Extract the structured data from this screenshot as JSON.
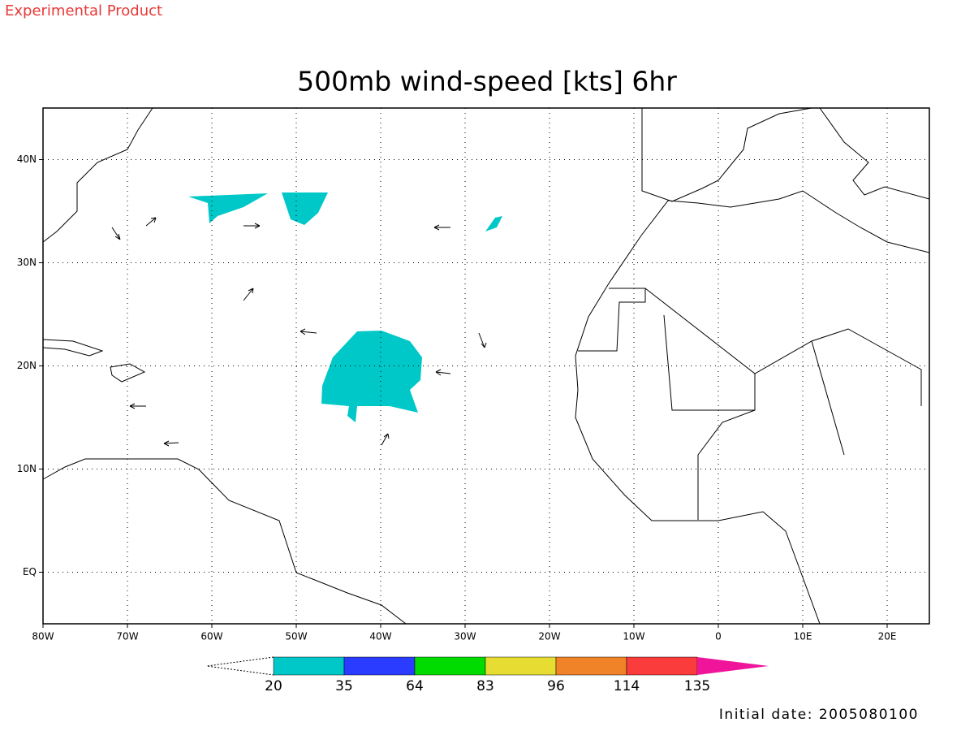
{
  "header": {
    "watermark": "Experimental Product",
    "title": "500mb wind-speed [kts] 6hr"
  },
  "map": {
    "xlim": [
      -80,
      25
    ],
    "ylim": [
      -5,
      45
    ],
    "xticks": [
      {
        "value": -80,
        "label": "80W"
      },
      {
        "value": -70,
        "label": "70W"
      },
      {
        "value": -60,
        "label": "60W"
      },
      {
        "value": -50,
        "label": "50W"
      },
      {
        "value": -40,
        "label": "40W"
      },
      {
        "value": -30,
        "label": "30W"
      },
      {
        "value": -20,
        "label": "20W"
      },
      {
        "value": -10,
        "label": "10W"
      },
      0,
      {
        "value": 10,
        "label": "10E"
      },
      {
        "value": 20,
        "label": "20E"
      }
    ],
    "yticks": [
      {
        "value": 40,
        "label": "40N"
      },
      {
        "value": 30,
        "label": "30N"
      },
      {
        "value": 20,
        "label": "20N"
      },
      {
        "value": 10,
        "label": "10N"
      },
      {
        "value": 0,
        "label": "EQ"
      }
    ],
    "grid": true
  },
  "colorbar": {
    "levels": [
      20,
      35,
      64,
      83,
      96,
      114,
      135
    ],
    "colors": [
      "#00c8c8",
      "#2a3cff",
      "#00dc00",
      "#e6dc32",
      "#f08228",
      "#fa3c3c",
      "#f0149b"
    ]
  },
  "footer": {
    "initial_date": "Initial date: 2005080100"
  }
}
